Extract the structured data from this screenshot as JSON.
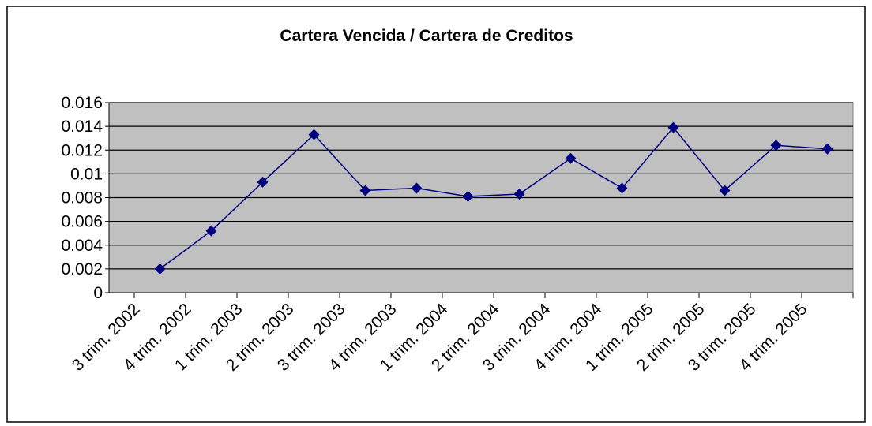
{
  "chart_data": {
    "type": "line",
    "title": "Cartera Vencida / Cartera de Creditos",
    "categories": [
      "3 trim. 2002",
      "4 trim. 2002",
      "1 trim. 2003",
      "2 trim. 2003",
      "3 trim. 2003",
      "4 trim. 2003",
      "1 trim. 2004",
      "2 trim. 2004",
      "3 trim. 2004",
      "4 trim. 2004",
      "1 trim. 2005",
      "2 trim. 2005",
      "3 trim. 2005",
      "4 trim. 2005"
    ],
    "values": [
      0.002,
      0.0052,
      0.0093,
      0.0133,
      0.0086,
      0.0088,
      0.0081,
      0.0083,
      0.0113,
      0.0088,
      0.0139,
      0.0086,
      0.0124,
      0.0121
    ],
    "color": "#000080",
    "ylim": [
      0,
      0.016
    ],
    "yticks": [
      0,
      0.002,
      0.004,
      0.006,
      0.008,
      0.01,
      0.012,
      0.014,
      0.016
    ],
    "grid": true
  }
}
